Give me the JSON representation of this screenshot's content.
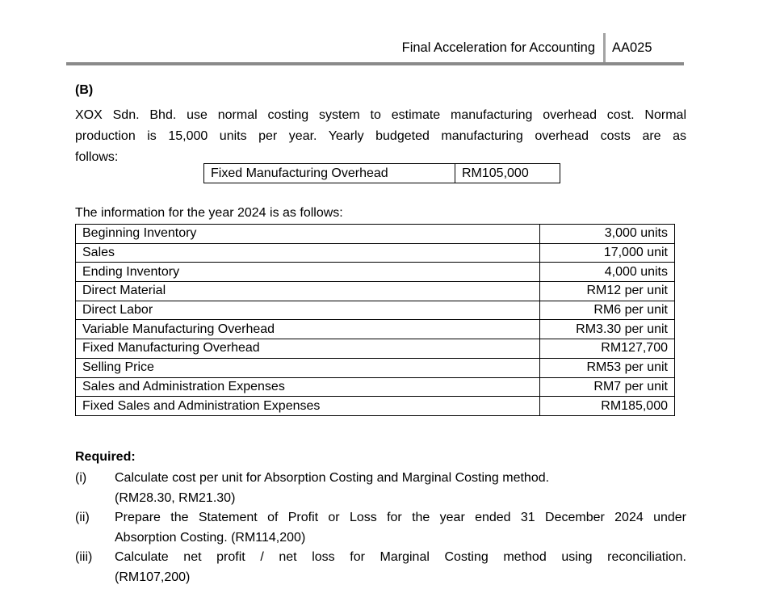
{
  "header": {
    "title": "Final Acceleration for Accounting",
    "code": "AA025"
  },
  "colors": {
    "rule": "#8a8a8a",
    "divider": "#a3a3a3",
    "table_border": "#000000",
    "text": "#000000",
    "background": "#ffffff"
  },
  "section": {
    "label": "(B)",
    "intro": {
      "line1": "XOX Sdn. Bhd. use normal costing system to estimate manufacturing overhead cost. Normal",
      "line2": "production is 15,000 units per year. Yearly budgeted manufacturing overhead costs are as",
      "line3": "follows:"
    }
  },
  "budget_table": {
    "label": "Fixed Manufacturing Overhead",
    "value": "RM105,000"
  },
  "info": {
    "caption": "The information for the year 2024 is as follows:",
    "rows": [
      {
        "label": "Beginning Inventory",
        "value": "3,000 units"
      },
      {
        "label": "Sales",
        "value": "17,000 unit"
      },
      {
        "label": "Ending Inventory",
        "value": "4,000 units"
      },
      {
        "label": "Direct Material",
        "value": "RM12 per unit"
      },
      {
        "label": "Direct Labor",
        "value": "RM6 per unit"
      },
      {
        "label": "Variable Manufacturing Overhead",
        "value": "RM3.30 per unit"
      },
      {
        "label": "Fixed Manufacturing Overhead",
        "value": "RM127,700"
      },
      {
        "label": "Selling Price",
        "value": "RM53 per unit"
      },
      {
        "label": "Sales and Administration Expenses",
        "value": "RM7 per unit"
      },
      {
        "label": "Fixed Sales and Administration Expenses",
        "value": "RM185,000"
      }
    ]
  },
  "required": {
    "heading": "Required:",
    "items": [
      {
        "marker": "(i)",
        "line1": "Calculate cost per unit for Absorption Costing and Marginal Costing method.",
        "line2": "(RM28.30, RM21.30)"
      },
      {
        "marker": "(ii)",
        "line1": "Prepare the Statement of Profit or Loss for the year ended 31 December 2024 under",
        "line2": "Absorption Costing. (RM114,200)"
      },
      {
        "marker": "(iii)",
        "line1": "Calculate net profit / net loss for Marginal Costing method using reconciliation.",
        "line2": "(RM107,200)"
      }
    ]
  }
}
